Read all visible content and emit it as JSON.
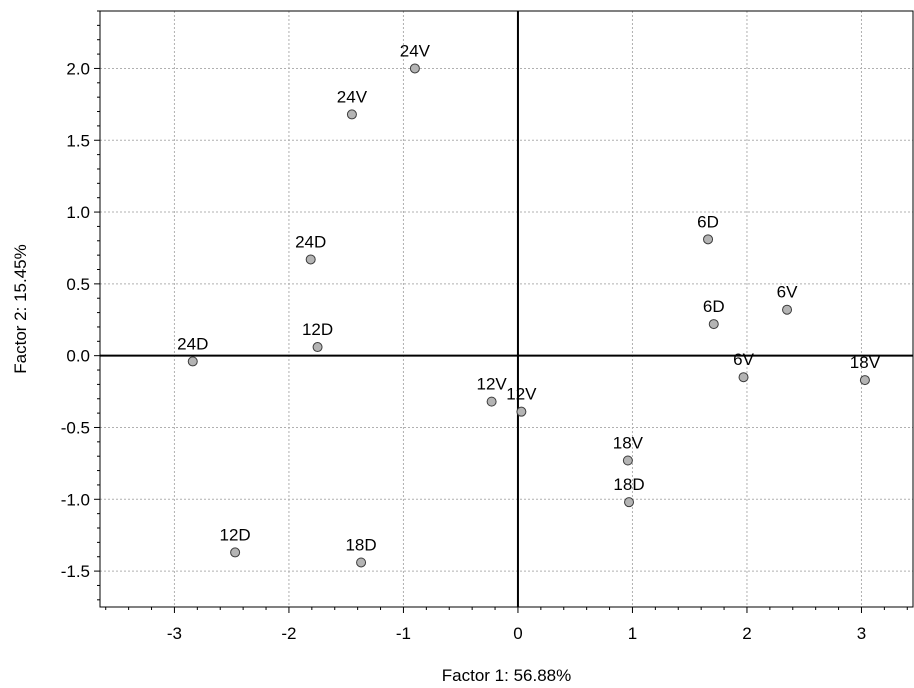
{
  "chart_data": {
    "type": "scatter",
    "title": "",
    "xlabel": "Factor 1: 56.88%",
    "ylabel": "Factor 2: 15.45%",
    "xlim": [
      -3.65,
      3.45
    ],
    "ylim": [
      -1.75,
      2.4
    ],
    "x_ticks": [
      -3,
      -2,
      -1,
      0,
      1,
      2,
      3
    ],
    "x_tick_labels": [
      "-3",
      "-2",
      "-1",
      "0",
      "1",
      "2",
      "3"
    ],
    "y_ticks": [
      -1.5,
      -1.0,
      -0.5,
      0.0,
      0.5,
      1.0,
      1.5,
      2.0
    ],
    "y_tick_labels": [
      "-1.5",
      "-1.0",
      "-0.5",
      "0.0",
      "0.5",
      "1.0",
      "1.5",
      "2.0"
    ],
    "grid": true,
    "zero_lines": true,
    "marker_color": "#b4b4b4",
    "marker_edge_color": "#3c3c3c",
    "points": [
      {
        "label": "24V",
        "x": -0.9,
        "y": 2.0
      },
      {
        "label": "24V",
        "x": -1.45,
        "y": 1.68
      },
      {
        "label": "24D",
        "x": -1.81,
        "y": 0.67
      },
      {
        "label": "12D",
        "x": -1.75,
        "y": 0.06
      },
      {
        "label": "24D",
        "x": -2.84,
        "y": -0.04
      },
      {
        "label": "12V",
        "x": -0.23,
        "y": -0.32
      },
      {
        "label": "12V",
        "x": 0.03,
        "y": -0.39
      },
      {
        "label": "12D",
        "x": -2.47,
        "y": -1.37
      },
      {
        "label": "18D",
        "x": -1.37,
        "y": -1.44
      },
      {
        "label": "6D",
        "x": 1.66,
        "y": 0.81
      },
      {
        "label": "6D",
        "x": 1.71,
        "y": 0.22
      },
      {
        "label": "6V",
        "x": 2.35,
        "y": 0.32
      },
      {
        "label": "6V",
        "x": 1.97,
        "y": -0.15
      },
      {
        "label": "18V",
        "x": 3.03,
        "y": -0.17
      },
      {
        "label": "18V",
        "x": 0.96,
        "y": -0.73
      },
      {
        "label": "18D",
        "x": 0.97,
        "y": -1.02
      }
    ]
  }
}
